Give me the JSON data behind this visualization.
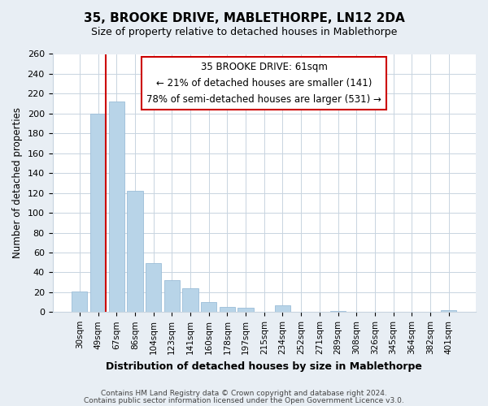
{
  "title": "35, BROOKE DRIVE, MABLETHORPE, LN12 2DA",
  "subtitle": "Size of property relative to detached houses in Mablethorpe",
  "xlabel": "Distribution of detached houses by size in Mablethorpe",
  "ylabel": "Number of detached properties",
  "categories": [
    "30sqm",
    "49sqm",
    "67sqm",
    "86sqm",
    "104sqm",
    "123sqm",
    "141sqm",
    "160sqm",
    "178sqm",
    "197sqm",
    "215sqm",
    "234sqm",
    "252sqm",
    "271sqm",
    "289sqm",
    "308sqm",
    "326sqm",
    "345sqm",
    "364sqm",
    "382sqm",
    "401sqm"
  ],
  "values": [
    21,
    200,
    212,
    122,
    49,
    32,
    24,
    10,
    5,
    4,
    0,
    7,
    0,
    0,
    1,
    0,
    0,
    0,
    0,
    0,
    2
  ],
  "bar_color": "#b8d4e8",
  "bar_edge_color": "#9bbdd8",
  "marker_line_color": "#cc0000",
  "ylim": [
    0,
    260
  ],
  "yticks": [
    0,
    20,
    40,
    60,
    80,
    100,
    120,
    140,
    160,
    180,
    200,
    220,
    240,
    260
  ],
  "annotation_title": "35 BROOKE DRIVE: 61sqm",
  "annotation_line1": "← 21% of detached houses are smaller (141)",
  "annotation_line2": "78% of semi-detached houses are larger (531) →",
  "footer1": "Contains HM Land Registry data © Crown copyright and database right 2024.",
  "footer2": "Contains public sector information licensed under the Open Government Licence v3.0.",
  "background_color": "#e8eef4",
  "plot_background": "#ffffff",
  "grid_color": "#c8d4e0",
  "title_fontsize": 11,
  "subtitle_fontsize": 9
}
